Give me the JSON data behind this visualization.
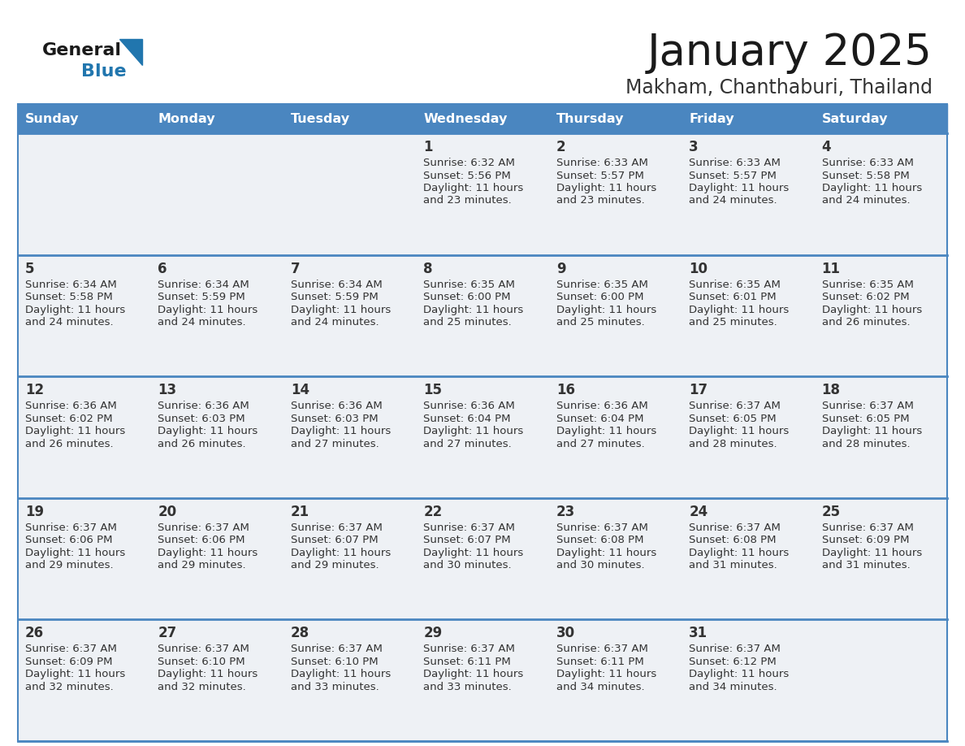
{
  "title": "January 2025",
  "subtitle": "Makham, Chanthaburi, Thailand",
  "header_color": "#4a86c0",
  "header_text_color": "#ffffff",
  "cell_bg_color": "#eef1f5",
  "separator_color": "#4a86c0",
  "title_color": "#1a1a1a",
  "subtitle_color": "#333333",
  "text_color": "#333333",
  "day_num_color": "#333333",
  "day_headers": [
    "Sunday",
    "Monday",
    "Tuesday",
    "Wednesday",
    "Thursday",
    "Friday",
    "Saturday"
  ],
  "calendar_data": [
    [
      {
        "day": 0,
        "sunrise": "",
        "sunset": "",
        "daylight": ""
      },
      {
        "day": 0,
        "sunrise": "",
        "sunset": "",
        "daylight": ""
      },
      {
        "day": 0,
        "sunrise": "",
        "sunset": "",
        "daylight": ""
      },
      {
        "day": 1,
        "sunrise": "6:32 AM",
        "sunset": "5:56 PM",
        "daylight": "11 hours and 23 minutes."
      },
      {
        "day": 2,
        "sunrise": "6:33 AM",
        "sunset": "5:57 PM",
        "daylight": "11 hours and 23 minutes."
      },
      {
        "day": 3,
        "sunrise": "6:33 AM",
        "sunset": "5:57 PM",
        "daylight": "11 hours and 24 minutes."
      },
      {
        "day": 4,
        "sunrise": "6:33 AM",
        "sunset": "5:58 PM",
        "daylight": "11 hours and 24 minutes."
      }
    ],
    [
      {
        "day": 5,
        "sunrise": "6:34 AM",
        "sunset": "5:58 PM",
        "daylight": "11 hours and 24 minutes."
      },
      {
        "day": 6,
        "sunrise": "6:34 AM",
        "sunset": "5:59 PM",
        "daylight": "11 hours and 24 minutes."
      },
      {
        "day": 7,
        "sunrise": "6:34 AM",
        "sunset": "5:59 PM",
        "daylight": "11 hours and 24 minutes."
      },
      {
        "day": 8,
        "sunrise": "6:35 AM",
        "sunset": "6:00 PM",
        "daylight": "11 hours and 25 minutes."
      },
      {
        "day": 9,
        "sunrise": "6:35 AM",
        "sunset": "6:00 PM",
        "daylight": "11 hours and 25 minutes."
      },
      {
        "day": 10,
        "sunrise": "6:35 AM",
        "sunset": "6:01 PM",
        "daylight": "11 hours and 25 minutes."
      },
      {
        "day": 11,
        "sunrise": "6:35 AM",
        "sunset": "6:02 PM",
        "daylight": "11 hours and 26 minutes."
      }
    ],
    [
      {
        "day": 12,
        "sunrise": "6:36 AM",
        "sunset": "6:02 PM",
        "daylight": "11 hours and 26 minutes."
      },
      {
        "day": 13,
        "sunrise": "6:36 AM",
        "sunset": "6:03 PM",
        "daylight": "11 hours and 26 minutes."
      },
      {
        "day": 14,
        "sunrise": "6:36 AM",
        "sunset": "6:03 PM",
        "daylight": "11 hours and 27 minutes."
      },
      {
        "day": 15,
        "sunrise": "6:36 AM",
        "sunset": "6:04 PM",
        "daylight": "11 hours and 27 minutes."
      },
      {
        "day": 16,
        "sunrise": "6:36 AM",
        "sunset": "6:04 PM",
        "daylight": "11 hours and 27 minutes."
      },
      {
        "day": 17,
        "sunrise": "6:37 AM",
        "sunset": "6:05 PM",
        "daylight": "11 hours and 28 minutes."
      },
      {
        "day": 18,
        "sunrise": "6:37 AM",
        "sunset": "6:05 PM",
        "daylight": "11 hours and 28 minutes."
      }
    ],
    [
      {
        "day": 19,
        "sunrise": "6:37 AM",
        "sunset": "6:06 PM",
        "daylight": "11 hours and 29 minutes."
      },
      {
        "day": 20,
        "sunrise": "6:37 AM",
        "sunset": "6:06 PM",
        "daylight": "11 hours and 29 minutes."
      },
      {
        "day": 21,
        "sunrise": "6:37 AM",
        "sunset": "6:07 PM",
        "daylight": "11 hours and 29 minutes."
      },
      {
        "day": 22,
        "sunrise": "6:37 AM",
        "sunset": "6:07 PM",
        "daylight": "11 hours and 30 minutes."
      },
      {
        "day": 23,
        "sunrise": "6:37 AM",
        "sunset": "6:08 PM",
        "daylight": "11 hours and 30 minutes."
      },
      {
        "day": 24,
        "sunrise": "6:37 AM",
        "sunset": "6:08 PM",
        "daylight": "11 hours and 31 minutes."
      },
      {
        "day": 25,
        "sunrise": "6:37 AM",
        "sunset": "6:09 PM",
        "daylight": "11 hours and 31 minutes."
      }
    ],
    [
      {
        "day": 26,
        "sunrise": "6:37 AM",
        "sunset": "6:09 PM",
        "daylight": "11 hours and 32 minutes."
      },
      {
        "day": 27,
        "sunrise": "6:37 AM",
        "sunset": "6:10 PM",
        "daylight": "11 hours and 32 minutes."
      },
      {
        "day": 28,
        "sunrise": "6:37 AM",
        "sunset": "6:10 PM",
        "daylight": "11 hours and 33 minutes."
      },
      {
        "day": 29,
        "sunrise": "6:37 AM",
        "sunset": "6:11 PM",
        "daylight": "11 hours and 33 minutes."
      },
      {
        "day": 30,
        "sunrise": "6:37 AM",
        "sunset": "6:11 PM",
        "daylight": "11 hours and 34 minutes."
      },
      {
        "day": 31,
        "sunrise": "6:37 AM",
        "sunset": "6:12 PM",
        "daylight": "11 hours and 34 minutes."
      },
      {
        "day": 0,
        "sunrise": "",
        "sunset": "",
        "daylight": ""
      }
    ]
  ]
}
